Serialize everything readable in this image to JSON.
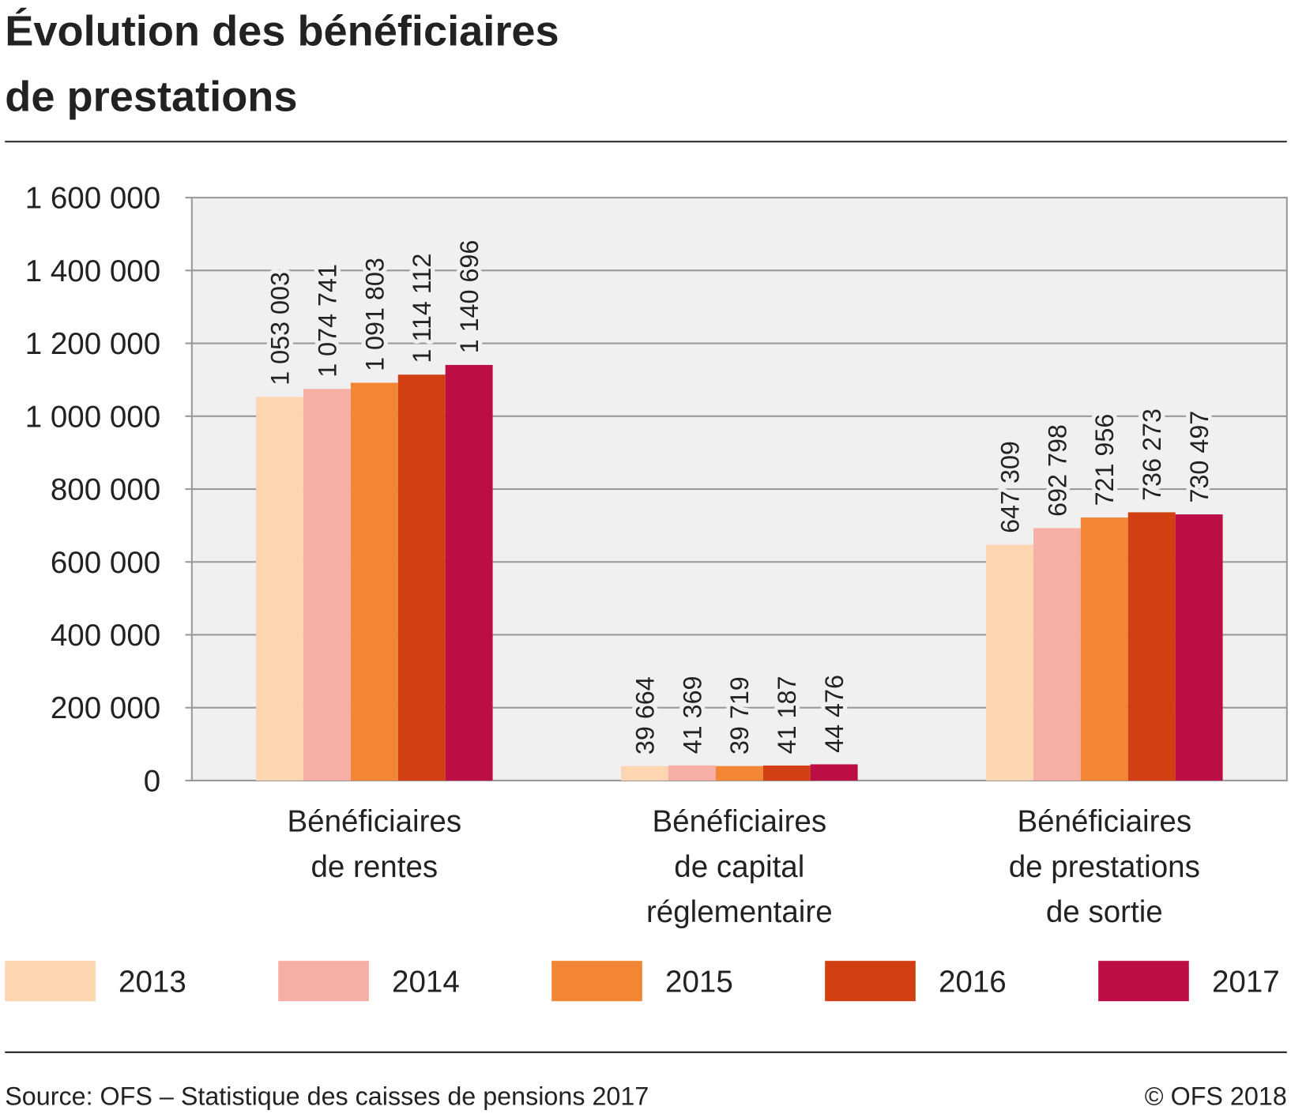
{
  "chart_data": {
    "type": "bar",
    "title": [
      "Évolution des bénéficiaires",
      "de prestations"
    ],
    "categories": [
      [
        "Bénéficiaires",
        "de rentes"
      ],
      [
        "Bénéficiaires",
        "de capital",
        "réglementaire"
      ],
      [
        "Bénéficiaires",
        "de prestations",
        "de sortie"
      ]
    ],
    "series": [
      {
        "name": "2013",
        "color": "#fdd5b1",
        "values": [
          1053003,
          39664,
          647309
        ],
        "value_labels": [
          "1 053 003",
          "39 664",
          "647 309"
        ]
      },
      {
        "name": "2014",
        "color": "#f7aea5",
        "values": [
          1074741,
          41369,
          692798
        ],
        "value_labels": [
          "1 074 741",
          "41 369",
          "692 798"
        ]
      },
      {
        "name": "2015",
        "color": "#f28634",
        "values": [
          1091803,
          39719,
          721956
        ],
        "value_labels": [
          "1 091 803",
          "39 719",
          "721 956"
        ]
      },
      {
        "name": "2016",
        "color": "#d23f13",
        "values": [
          1114112,
          41187,
          736273
        ],
        "value_labels": [
          "1 114 112",
          "41 187",
          "736 273"
        ]
      },
      {
        "name": "2017",
        "color": "#bc0d45",
        "values": [
          1140696,
          44476,
          730497
        ],
        "value_labels": [
          "1 140 696",
          "44 476",
          "730 497"
        ]
      }
    ],
    "ylim": [
      0,
      1600000
    ],
    "yticks": [
      0,
      {
        "value": 200000,
        "label": "200 000"
      },
      {
        "value": 400000,
        "label": "400 000"
      },
      {
        "value": 600000,
        "label": "600 000"
      },
      {
        "value": 800000,
        "label": "800 000"
      },
      {
        "value": 1000000,
        "label": "1 000 000"
      },
      {
        "value": 1200000,
        "label": "1 200 000"
      },
      {
        "value": 1400000,
        "label": "1 400 000"
      },
      {
        "value": 1600000,
        "label": "1 600 000"
      }
    ],
    "grid": true,
    "source": "Source: OFS – Statistique des caisses de pensions 2017",
    "copyright": "© OFS 2018"
  }
}
